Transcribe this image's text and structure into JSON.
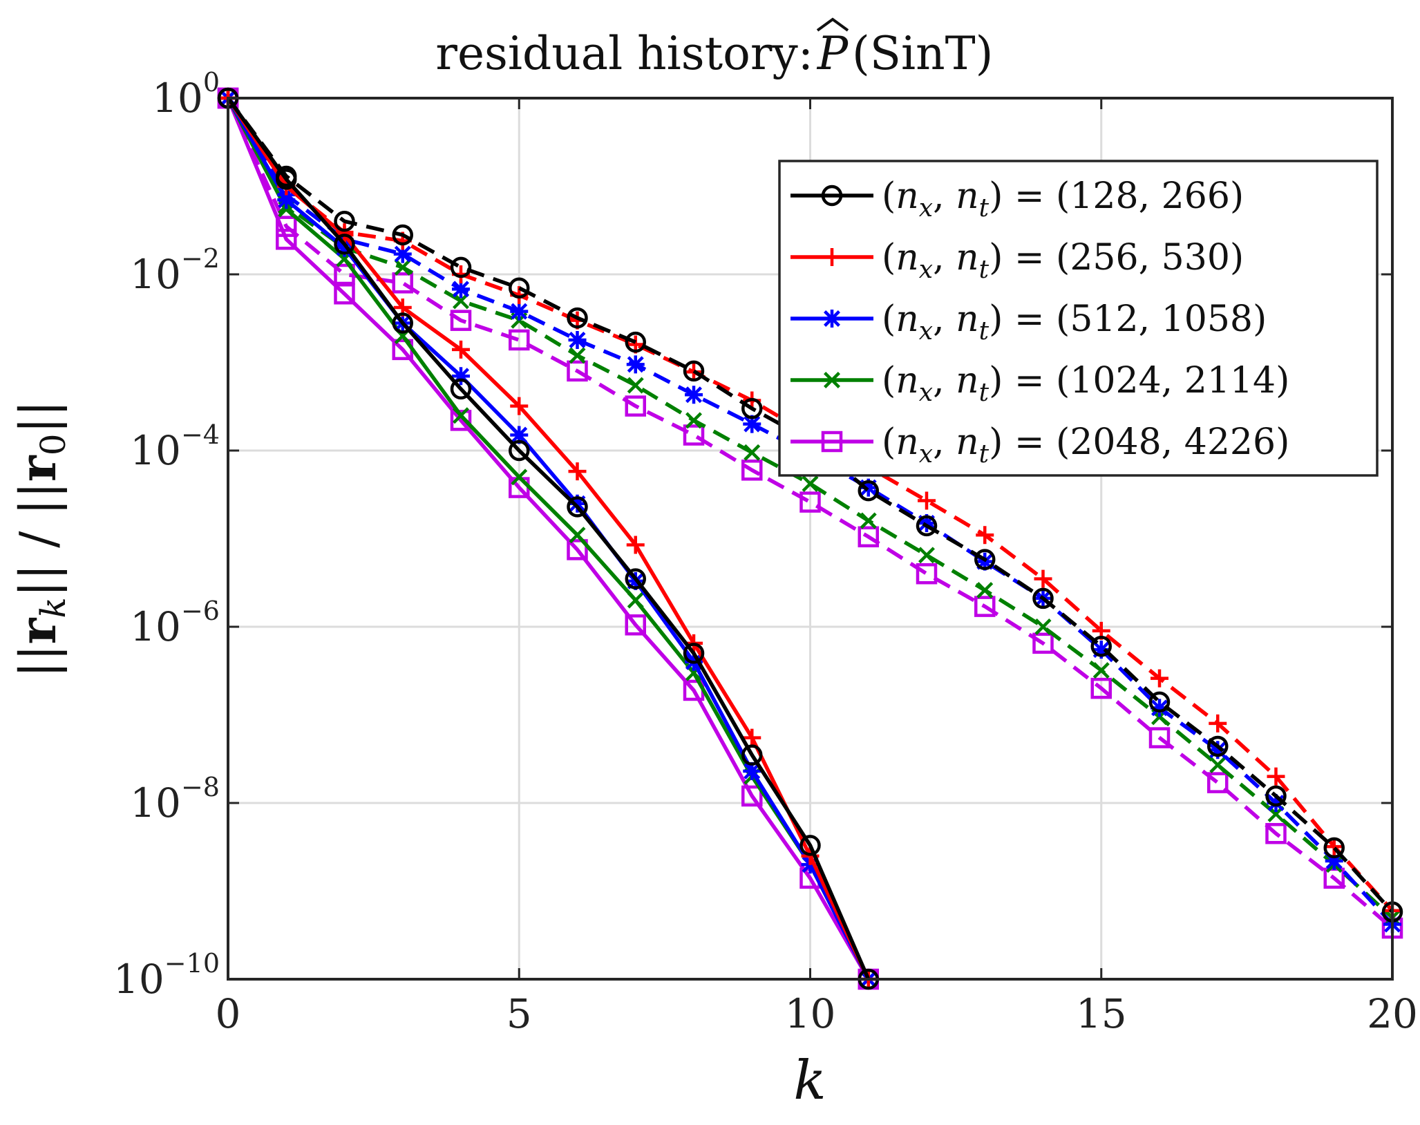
{
  "chart_data": {
    "type": "line",
    "title": "residual history: P̂ (SinT)",
    "title_prefix": "residual history: ",
    "title_symbol": "P",
    "title_suffix": " (SinT)",
    "xlabel": "k",
    "ylabel": "||r_k|| / ||r_0||",
    "yscale": "log",
    "xlim": [
      0,
      20
    ],
    "ylim": [
      1e-10,
      1
    ],
    "xticks": [
      0,
      5,
      10,
      15,
      20
    ],
    "xtick_labels": [
      "0",
      "5",
      "10",
      "15",
      "20"
    ],
    "yticks": [
      1,
      0.01,
      0.0001,
      1e-06,
      1e-08,
      1e-10
    ],
    "ytick_base": [
      "10",
      "10",
      "10",
      "10",
      "10",
      "10"
    ],
    "ytick_exp": [
      "0",
      "−2",
      "−4",
      "−6",
      "−8",
      "−10"
    ],
    "grid": true,
    "legend_position": "top-right",
    "series": [
      {
        "name": "(n_x, n_t) = (128, 266)",
        "legend_text": "= (128, 266)",
        "color": "#000000",
        "marker": "circle",
        "solid": [
          1,
          0.12,
          0.022,
          0.0028,
          0.0005,
          0.0001,
          2.3e-05,
          3.5e-06,
          5e-07,
          3.5e-08,
          3.3e-09,
          1e-10
        ],
        "dashed": [
          1,
          0.13,
          0.04,
          0.028,
          0.012,
          0.007,
          0.0032,
          0.0017,
          0.0008,
          0.0003,
          0.00013,
          3.5e-05,
          1.4e-05,
          5.8e-06,
          2.1e-06,
          6e-07,
          1.4e-07,
          4.4e-08,
          1.2e-08,
          3.1e-09,
          5.8e-10
        ]
      },
      {
        "name": "(n_x, n_t) = (256, 530)",
        "legend_text": "= (256, 530)",
        "color": "#ff0000",
        "marker": "plus",
        "solid": [
          1,
          0.1,
          0.028,
          0.0042,
          0.0014,
          0.00032,
          5.8e-05,
          8.5e-06,
          6.5e-07,
          5.5e-08,
          2.5e-09,
          1e-10
        ],
        "dashed": [
          1,
          0.1,
          0.03,
          0.024,
          0.01,
          0.0058,
          0.003,
          0.0016,
          0.00078,
          0.00037,
          0.00015,
          6.5e-05,
          2.7e-05,
          1.1e-05,
          3.5e-06,
          9e-07,
          2.6e-07,
          8e-08,
          2e-08,
          3.2e-09,
          6e-10
        ]
      },
      {
        "name": "(n_x, n_t) = (512, 1058)",
        "legend_text": "= (512, 1058)",
        "color": "#0000ff",
        "marker": "star",
        "solid": [
          1,
          0.07,
          0.02,
          0.0028,
          0.0007,
          0.00015,
          2.5e-05,
          3.3e-06,
          4e-07,
          2.3e-08,
          2e-09,
          1e-10
        ],
        "dashed": [
          1,
          0.08,
          0.025,
          0.017,
          0.0068,
          0.0038,
          0.0018,
          0.00095,
          0.00043,
          0.0002,
          9e-05,
          3.8e-05,
          1.5e-05,
          5.5e-06,
          2.1e-06,
          5.5e-07,
          1.2e-07,
          4e-08,
          1e-08,
          2.2e-09,
          4.2e-10
        ]
      },
      {
        "name": "(n_x, n_t) = (1024, 2114)",
        "legend_text": "= (1024, 2114)",
        "color": "#008000",
        "marker": "x",
        "solid": [
          1,
          0.055,
          0.015,
          0.002,
          0.00025,
          5e-05,
          1.1e-05,
          2e-06,
          3e-07,
          2e-08,
          2e-09,
          1e-10
        ],
        "dashed": [
          1,
          0.06,
          0.02,
          0.012,
          0.005,
          0.003,
          0.0012,
          0.00055,
          0.00022,
          9.5e-05,
          4.2e-05,
          1.6e-05,
          6.5e-06,
          2.6e-06,
          1e-06,
          3.2e-07,
          9.5e-08,
          2.7e-08,
          7.5e-09,
          2e-09,
          5e-10
        ]
      },
      {
        "name": "(n_x, n_t) = (2048, 4226)",
        "legend_text": "= (2048, 4226)",
        "color": "#bf00e6",
        "marker": "square",
        "solid": [
          1,
          0.025,
          0.006,
          0.0014,
          0.00022,
          3.8e-05,
          7.5e-06,
          1.05e-06,
          1.9e-07,
          1.2e-08,
          1.4e-09,
          1e-10
        ],
        "dashed": [
          1,
          0.035,
          0.01,
          0.008,
          0.003,
          0.0018,
          0.0008,
          0.00032,
          0.00015,
          6e-05,
          2.6e-05,
          1.05e-05,
          4e-06,
          1.7e-06,
          6.5e-07,
          2e-07,
          5.5e-08,
          1.7e-08,
          4.5e-09,
          1.4e-09,
          3.8e-10
        ]
      }
    ]
  }
}
